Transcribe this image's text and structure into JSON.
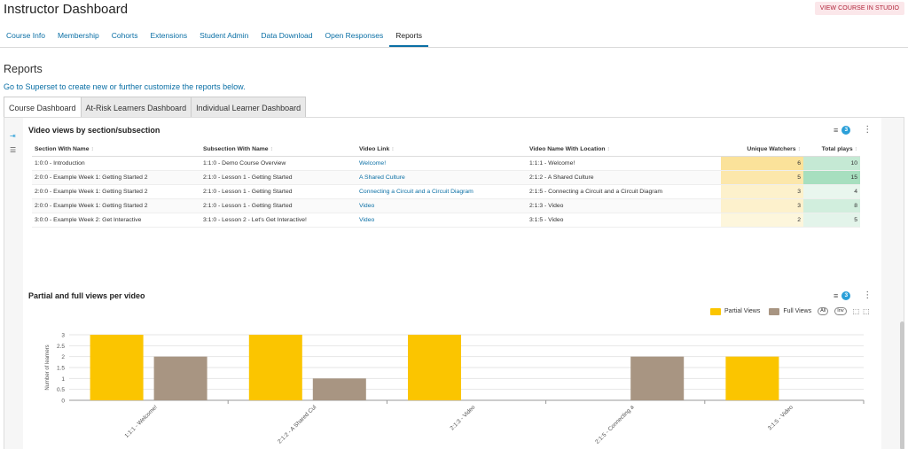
{
  "header": {
    "title": "Instructor Dashboard",
    "studio_button": "VIEW COURSE IN STUDIO"
  },
  "nav": {
    "tabs": [
      "Course Info",
      "Membership",
      "Cohorts",
      "Extensions",
      "Student Admin",
      "Data Download",
      "Open Responses",
      "Reports"
    ],
    "active": "Reports"
  },
  "reports": {
    "heading": "Reports",
    "superset_link": "Go to Superset to create new or further customize the reports below."
  },
  "dashboard_tabs": [
    "Course Dashboard",
    "At-Risk Learners Dashboard",
    "Individual Learner Dashboard"
  ],
  "video_table": {
    "title": "Video views by section/subsection",
    "filter_count": "3",
    "columns": [
      "Section With Name",
      "Subsection With Name",
      "Video Link",
      "Video Name With Location",
      "Unique Watchers",
      "Total plays"
    ],
    "rows": [
      [
        "1:0:0 - Introduction",
        "1:1:0 - Demo Course Overview",
        "Welcome!",
        "1:1:1 - Welcome!",
        "6",
        "10"
      ],
      [
        "2:0:0 - Example Week 1: Getting Started 2",
        "2:1:0 - Lesson 1 - Getting Started",
        "A Shared Culture",
        "2:1:2 - A Shared Culture",
        "5",
        "15"
      ],
      [
        "2:0:0 - Example Week 1: Getting Started 2",
        "2:1:0 - Lesson 1 - Getting Started",
        "Connecting a Circuit and a Circuit Diagram",
        "2:1:5 - Connecting a Circuit and a Circuit Diagram",
        "3",
        "4"
      ],
      [
        "2:0:0 - Example Week 1: Getting Started 2",
        "2:1:0 - Lesson 1 - Getting Started",
        "Video",
        "2:1:3 - Video",
        "3",
        "8"
      ],
      [
        "3:0:0 - Example Week 2: Get Interactive",
        "3:1:0 - Lesson 2 - Let's Get Interactive!",
        "Video",
        "3:1:5 - Video",
        "2",
        "5"
      ]
    ],
    "colors": {
      "watchers_max": "#fbe29a",
      "watchers_min": "#fdf6dc",
      "plays_max": "#a7dfbf",
      "plays_min": "#e9f6ee"
    }
  },
  "views_chart": {
    "title": "Partial and full views per video",
    "filter_count": "3",
    "legend_controls": {
      "all": "All",
      "inv": "Inv"
    }
  },
  "chart_data": {
    "type": "bar",
    "categories": [
      "1:1:1 - Welcome!",
      "2:1:2 - A Shared Cul",
      "2:1:3 - Video",
      "2:1:5 - Connecting a",
      "3:1:5 - Video"
    ],
    "series": [
      {
        "name": "Partial Views",
        "color": "#fbc500",
        "values": [
          3,
          3,
          3,
          0,
          2
        ]
      },
      {
        "name": "Full Views",
        "color": "#a89582",
        "values": [
          2,
          1,
          0,
          2,
          0
        ]
      }
    ],
    "ylabel": "Number of learners",
    "yticks": [
      "0",
      "0.5",
      "1",
      "1.5",
      "2",
      "2.5",
      "3"
    ],
    "ylim": [
      0,
      3
    ],
    "grid": true,
    "legend": "top-right"
  }
}
